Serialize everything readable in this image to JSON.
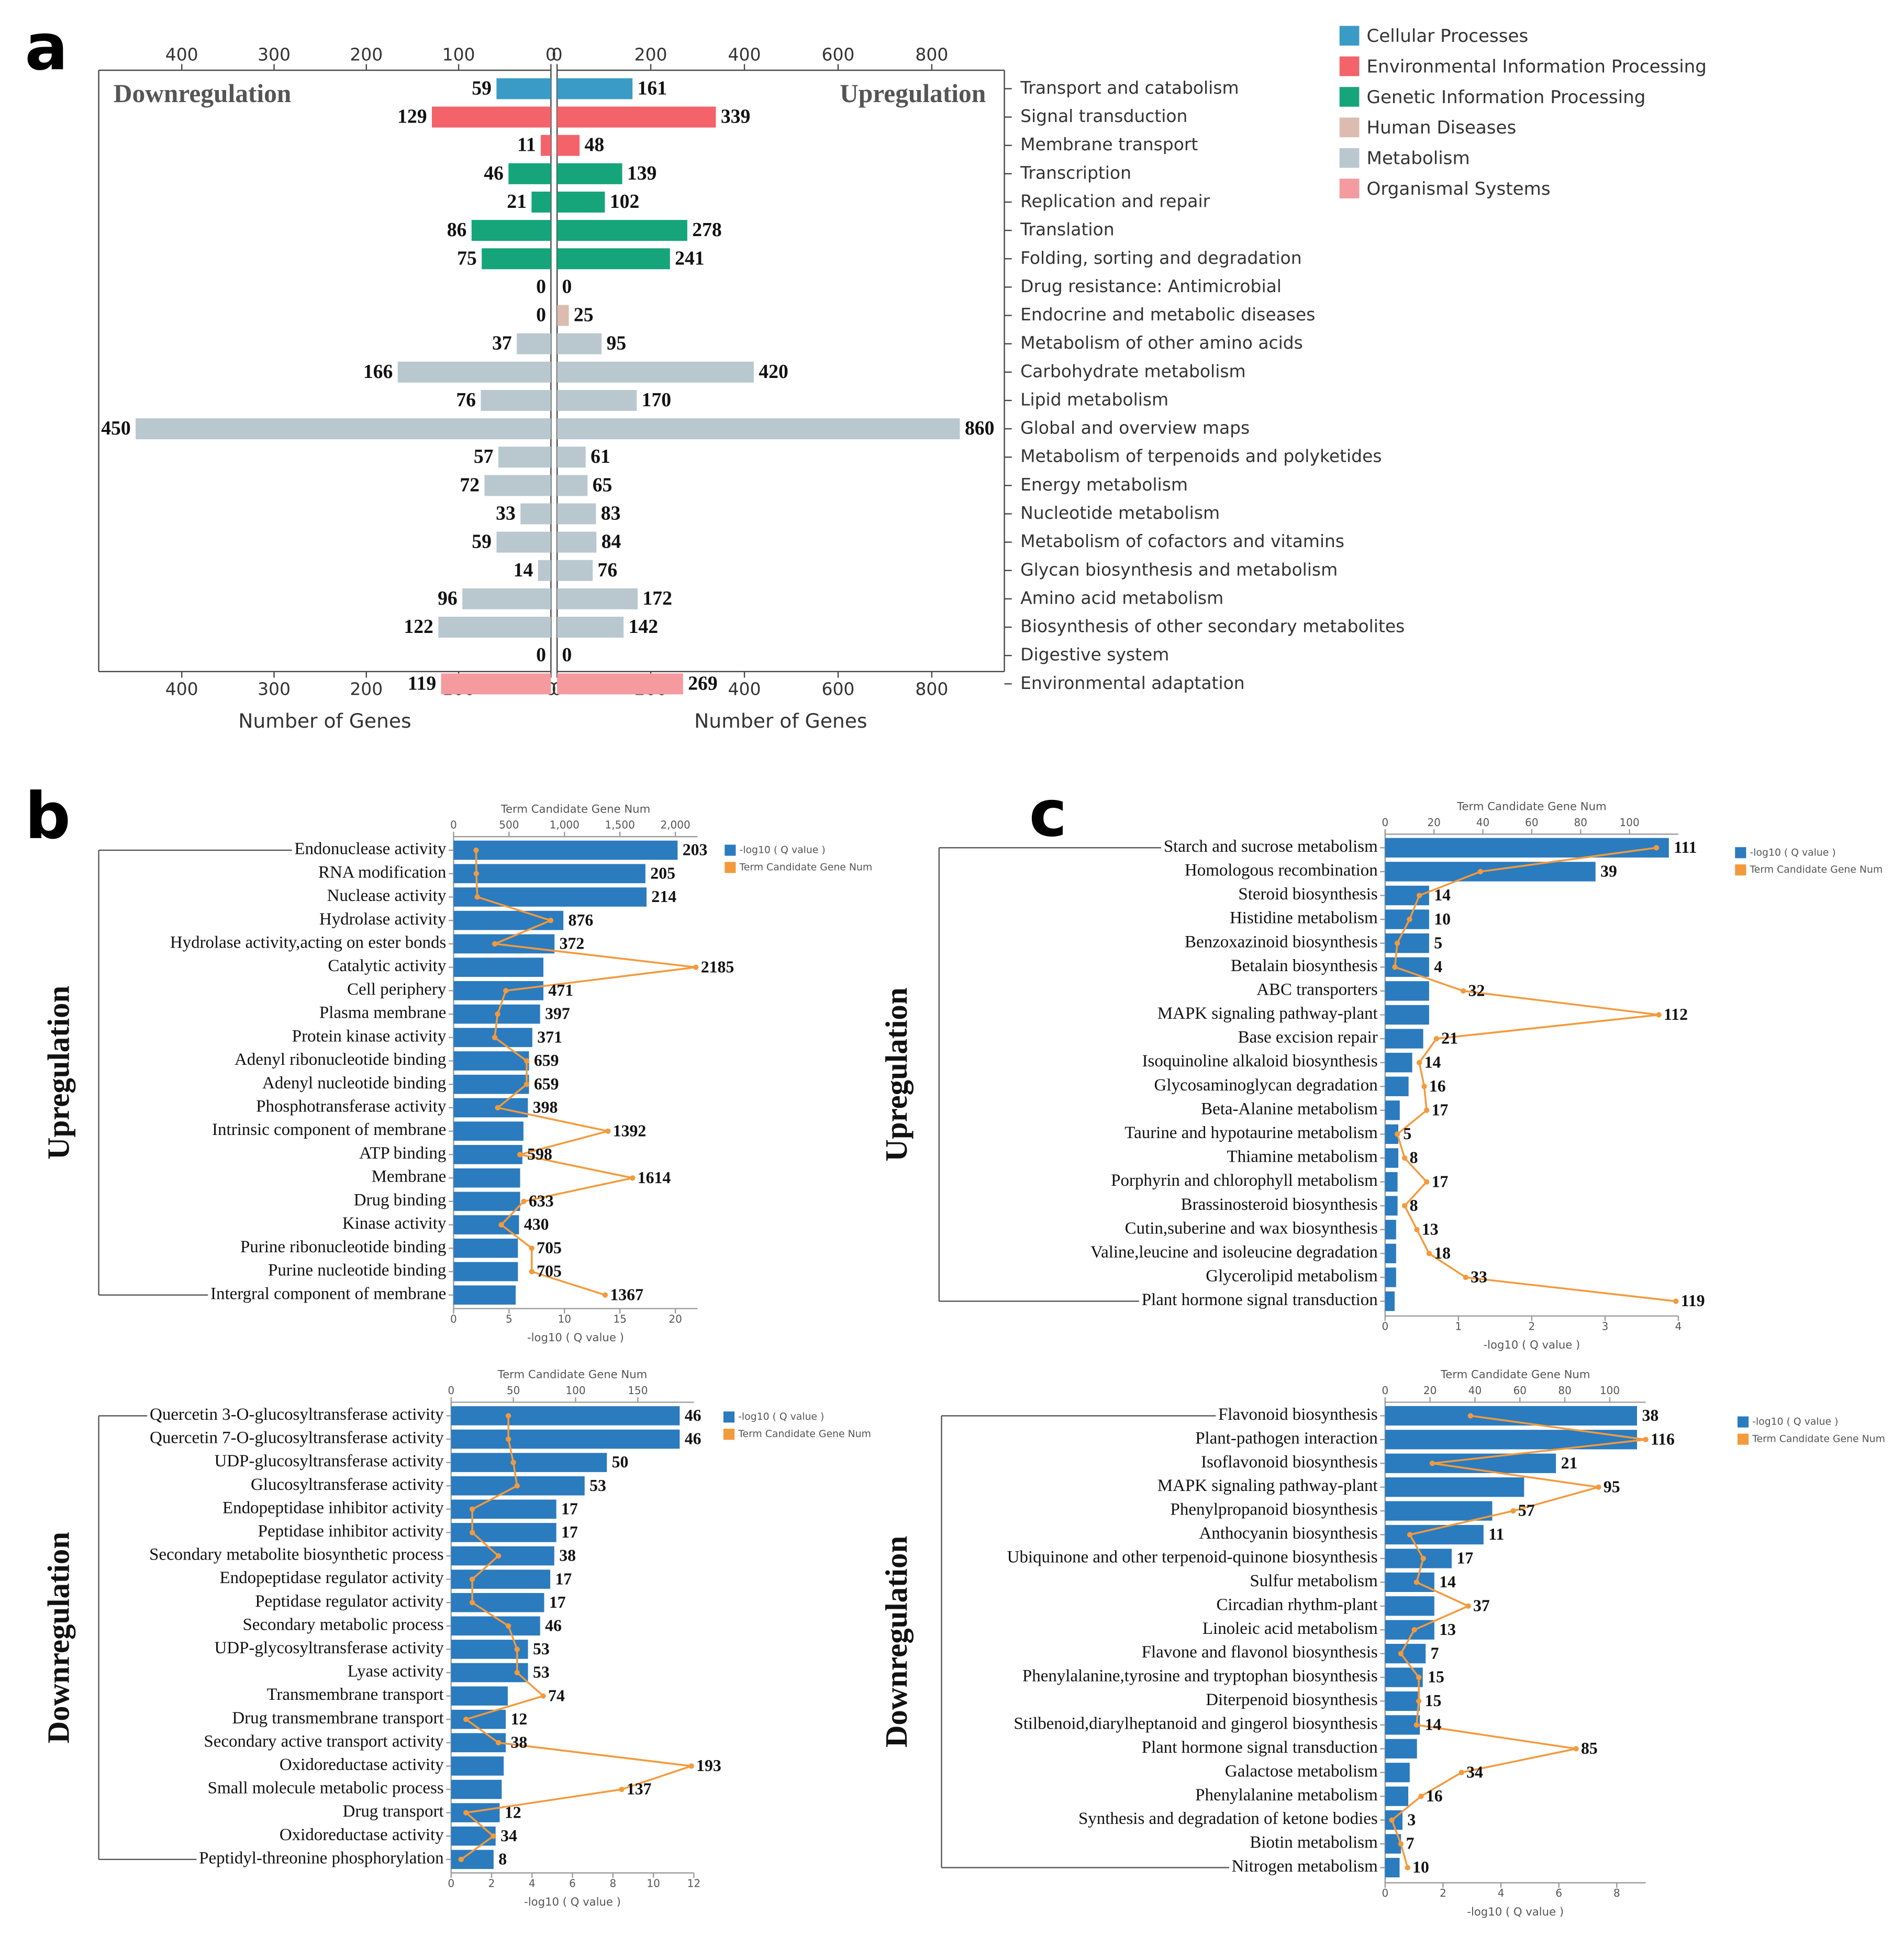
{
  "panel_labels": [
    "a",
    "b",
    "c"
  ],
  "chart_data": [
    {
      "type": "bar",
      "orientation": "horizontal",
      "categories": [
        "Transport and catabolism",
        "Signal transduction",
        "Membrane transport",
        "Transcription",
        "Replication and repair",
        "Translation",
        "Folding, sorting and degradation",
        "Drug resistance: Antimicrobial",
        "Endocrine and metabolic diseases",
        "Metabolism of other amino acids",
        "Carbohydrate metabolism",
        "Lipid metabolism",
        "Global and overview maps",
        "Metabolism of terpenoids and polyketides",
        "Energy metabolism",
        "Nucleotide metabolism",
        "Metabolism of cofactors and vitamins",
        "Glycan biosynthesis and metabolism",
        "Amino acid metabolism",
        "Biosynthesis of other secondary metabolites",
        "Digestive system",
        "Environmental adaptation"
      ],
      "category_groups": [
        "Cellular Processes",
        "Environmental Information Processing",
        "Environmental Information Processing",
        "Genetic Information Processing",
        "Genetic Information Processing",
        "Genetic Information Processing",
        "Genetic Information Processing",
        "Human Diseases",
        "Human Diseases",
        "Metabolism",
        "Metabolism",
        "Metabolism",
        "Metabolism",
        "Metabolism",
        "Metabolism",
        "Metabolism",
        "Metabolism",
        "Metabolism",
        "Metabolism",
        "Metabolism",
        "Organismal Systems",
        "Organismal Systems"
      ],
      "groups": [
        {
          "name": "Cellular Processes",
          "color": "#3a9bc7"
        },
        {
          "name": "Environmental Information Processing",
          "color": "#f4636a"
        },
        {
          "name": "Genetic Information Processing",
          "color": "#16a57a"
        },
        {
          "name": "Human Diseases",
          "color": "#dcbcb0"
        },
        {
          "name": "Metabolism",
          "color": "#b9c8cf"
        },
        {
          "name": "Organismal Systems",
          "color": "#f59ba0"
        }
      ],
      "series": [
        {
          "name": "Downregulation",
          "xlabel": "Number of Genes",
          "xlim": [
            0,
            490
          ],
          "xticks": [
            0,
            100,
            200,
            300,
            400
          ],
          "values": [
            59,
            129,
            11,
            46,
            21,
            86,
            75,
            0,
            0,
            37,
            166,
            76,
            450,
            57,
            72,
            33,
            59,
            14,
            96,
            122,
            0,
            119
          ]
        },
        {
          "name": "Upregulation",
          "xlabel": "Number of Genes",
          "xlim": [
            0,
            955
          ],
          "xticks": [
            0,
            200,
            400,
            600,
            800
          ],
          "values": [
            161,
            339,
            48,
            139,
            102,
            278,
            241,
            0,
            25,
            95,
            420,
            170,
            860,
            61,
            65,
            83,
            84,
            76,
            172,
            142,
            0,
            269
          ]
        }
      ]
    },
    {
      "type": "bar",
      "orientation": "horizontal",
      "panel": "b",
      "group_label": "Upregulation",
      "categories": [
        "Endonuclease activity",
        "RNA modification",
        "Nuclease activity",
        "Hydrolase activity",
        "Hydrolase activity,acting on ester bonds",
        "Catalytic activity",
        "Cell periphery",
        "Plasma membrane",
        "Protein kinase activity",
        "Adenyl ribonucleotide binding",
        "Adenyl nucleotide binding",
        "Phosphotransferase activity",
        "Intrinsic component of membrane",
        "ATP binding",
        "Membrane",
        "Drug binding",
        "Kinase activity",
        "Purine ribonucleotide binding",
        "Purine nucleotide binding",
        "Intergral component of membrane"
      ],
      "xlabel": "-log10 ( Q value )",
      "xlim": [
        0,
        22
      ],
      "xticks": [
        0,
        5,
        10,
        15,
        20
      ],
      "x2label": "Term Candidate Gene Num",
      "x2lim": [
        0,
        2200
      ],
      "x2ticks": [
        0,
        500,
        {
          "value": 1000,
          "label": "1,000"
        },
        {
          "value": 1500,
          "label": "1,500"
        },
        {
          "value": 2000,
          "label": "2,000"
        }
      ],
      "series": [
        {
          "name": "-log10 ( Q value )",
          "color": "#2b7bbf",
          "values": [
            20.2,
            17.3,
            17.4,
            9.9,
            9.1,
            8.1,
            8.1,
            7.8,
            7.1,
            6.8,
            6.8,
            6.7,
            6.3,
            6.2,
            6.0,
            6.0,
            5.9,
            5.8,
            5.8,
            5.6
          ]
        },
        {
          "name": "Term Candidate Gene Num",
          "type": "line",
          "axis": "x2",
          "color": "#f39a3c",
          "values": [
            203,
            205,
            214,
            876,
            372,
            2185,
            471,
            397,
            371,
            659,
            659,
            398,
            1392,
            598,
            1614,
            633,
            430,
            705,
            705,
            1367
          ]
        }
      ]
    },
    {
      "type": "bar",
      "orientation": "horizontal",
      "group_label": "Downregulation",
      "categories": [
        "Quercetin 3-O-glucosyltransferase activity",
        "Quercetin 7-O-glucosyltransferase activity",
        "UDP-glucosyltransferase activity",
        "Glucosyltransferase activity",
        "Endopeptidase inhibitor activity",
        "Peptidase inhibitor activity",
        "Secondary metabolite biosynthetic process",
        "Endopeptidase regulator activity",
        "Peptidase regulator activity",
        "Secondary metabolic process",
        "UDP-glycosyltransferase activity",
        "Lyase activity",
        "Transmembrane transport",
        "Drug transmembrane transport",
        "Secondary active transport activity",
        "Oxidoreductase activity",
        "Small molecule metabolic process",
        "Drug transport",
        "Oxidoreductase activity",
        "Peptidyl-threonine phosphorylation"
      ],
      "xlabel": "-log10 ( Q value )",
      "xlim": [
        0,
        12
      ],
      "xticks": [
        0,
        2,
        4,
        6,
        8,
        10,
        12
      ],
      "x2label": "Term Candidate Gene Num",
      "x2lim": [
        0,
        195
      ],
      "x2ticks": [
        0,
        50,
        100,
        150
      ],
      "series": [
        {
          "name": "-log10 ( Q value )",
          "color": "#2b7bbf",
          "values": [
            11.3,
            11.3,
            7.7,
            6.6,
            5.2,
            5.2,
            5.1,
            4.9,
            4.6,
            4.4,
            3.8,
            3.8,
            2.8,
            2.7,
            2.7,
            2.6,
            2.5,
            2.4,
            2.2,
            2.1
          ]
        },
        {
          "name": "Term Candidate Gene Num",
          "type": "line",
          "axis": "x2",
          "color": "#f39a3c",
          "values": [
            46,
            46,
            50,
            53,
            17,
            17,
            38,
            17,
            17,
            46,
            53,
            53,
            74,
            12,
            38,
            193,
            137,
            12,
            34,
            8
          ]
        }
      ]
    },
    {
      "type": "bar",
      "orientation": "horizontal",
      "panel": "c",
      "group_label": "Upregulation",
      "categories": [
        "Starch and sucrose metabolism",
        "Homologous recombination",
        "Steroid biosynthesis",
        "Histidine metabolism",
        "Benzoxazinoid biosynthesis",
        "Betalain biosynthesis",
        "ABC transporters",
        "MAPK signaling pathway-plant",
        "Base excision repair",
        "Isoquinoline alkaloid biosynthesis",
        "Glycosaminoglycan degradation",
        "Beta-Alanine metabolism",
        "Taurine and hypotaurine metabolism",
        "Thiamine metabolism",
        "Porphyrin and chlorophyll metabolism",
        "Brassinosteroid biosynthesis",
        "Cutin,suberine and wax biosynthesis",
        "Valine,leucine and isoleucine degradation",
        "Glycerolipid metabolism",
        "Plant hormone signal transduction"
      ],
      "xlabel": "-log10 ( Q value )",
      "xlim": [
        0,
        4
      ],
      "xticks": [
        0,
        1,
        2,
        3,
        4
      ],
      "x2label": "Term Candidate Gene Num",
      "x2lim": [
        0,
        120
      ],
      "x2ticks": [
        0,
        20,
        40,
        60,
        80,
        100
      ],
      "series": [
        {
          "name": "-log10 ( Q value )",
          "color": "#2b7bbf",
          "values": [
            3.87,
            2.87,
            0.6,
            0.6,
            0.6,
            0.6,
            0.6,
            0.6,
            0.52,
            0.37,
            0.32,
            0.2,
            0.18,
            0.18,
            0.17,
            0.17,
            0.15,
            0.15,
            0.15,
            0.13
          ]
        },
        {
          "name": "Term Candidate Gene Num",
          "type": "line",
          "axis": "x2",
          "color": "#f39a3c",
          "values": [
            111,
            39,
            14,
            10,
            5,
            4,
            32,
            112,
            21,
            14,
            16,
            17,
            5,
            8,
            17,
            8,
            13,
            18,
            33,
            119
          ]
        }
      ]
    },
    {
      "type": "bar",
      "orientation": "horizontal",
      "group_label": "Downregulation",
      "categories": [
        "Flavonoid biosynthesis",
        "Plant-pathogen interaction",
        "Isoflavonoid biosynthesis",
        "MAPK signaling pathway-plant",
        "Phenylpropanoid biosynthesis",
        "Anthocyanin biosynthesis",
        "Ubiquinone and other terpenoid-quinone biosynthesis",
        "Sulfur metabolism",
        "Circadian rhythm-plant",
        "Linoleic acid metabolism",
        "Flavone and flavonol biosynthesis",
        "Phenylalanine,tyrosine and tryptophan biosynthesis",
        "Diterpenoid biosynthesis",
        "Stilbenoid,diarylheptanoid and gingerol biosynthesis",
        "Plant hormone signal transduction",
        "Galactose metabolism",
        "Phenylalanine metabolism",
        "Synthesis and degradation of ketone bodies",
        "Biotin metabolism",
        "Nitrogen metabolism"
      ],
      "xlabel": "-log10 ( Q value )",
      "xlim": [
        0,
        9
      ],
      "xticks": [
        0,
        2,
        4,
        6,
        8
      ],
      "x2label": "Term Candidate Gene Num",
      "x2lim": [
        0,
        116
      ],
      "x2ticks": [
        0,
        20,
        40,
        60,
        80,
        100
      ],
      "series": [
        {
          "name": "-log10 ( Q value )",
          "color": "#2b7bbf",
          "values": [
            8.7,
            8.7,
            5.9,
            4.8,
            3.7,
            3.4,
            2.3,
            1.7,
            1.7,
            1.7,
            1.4,
            1.3,
            1.2,
            1.2,
            1.1,
            0.85,
            0.8,
            0.6,
            0.55,
            0.5
          ]
        },
        {
          "name": "Term Candidate Gene Num",
          "type": "line",
          "axis": "x2",
          "color": "#f39a3c",
          "values": [
            38,
            116,
            21,
            95,
            57,
            11,
            17,
            14,
            37,
            13,
            7,
            15,
            15,
            14,
            85,
            34,
            16,
            3,
            7,
            10
          ]
        }
      ]
    }
  ]
}
